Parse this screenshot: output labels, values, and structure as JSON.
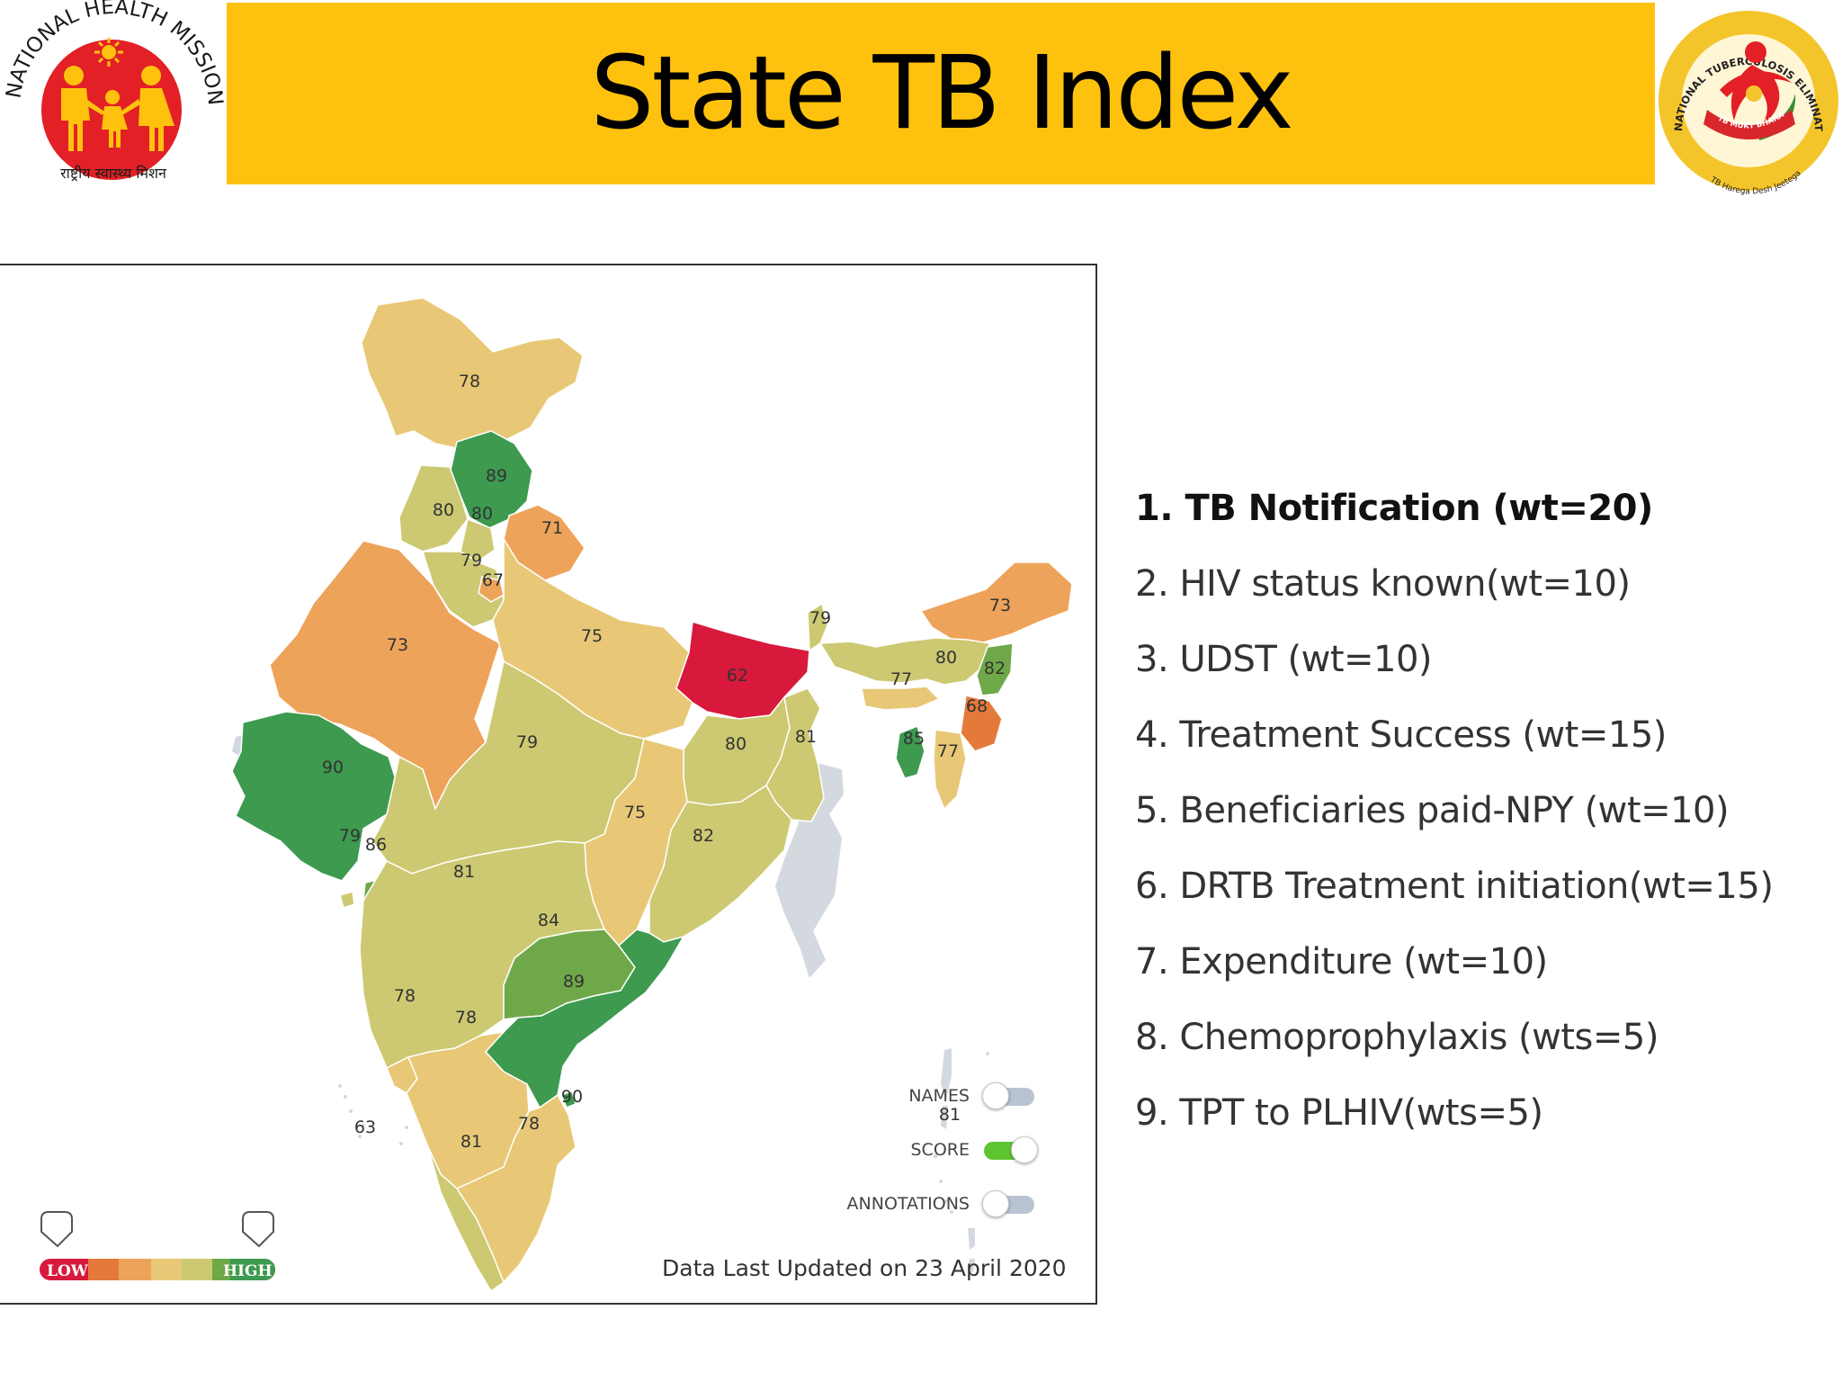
{
  "header": {
    "title": "State TB Index",
    "left_logo": {
      "icon": "national-health-mission-logo",
      "arc_text": "NATIONAL HEALTH MISSION",
      "bottom_text": "राष्ट्रीय स्वास्थ्य मिशन",
      "colors": {
        "circle": "#e22026",
        "figures": "#fec20e"
      }
    },
    "right_logo": {
      "icon": "ntep-tb-mukt-bharat-logo",
      "arc_text": "NATIONAL TUBERCULOSIS ELIMINATION PROGRAMME",
      "banner_text": "TB MUKT BHARAT",
      "bottom_text": "TB Harega Desh Jeetega"
    },
    "colors": {
      "title_bar": "#fec20e"
    }
  },
  "map": {
    "score_labels": {
      "jk": "78",
      "hp": "89",
      "pb": "80",
      "ch": "80",
      "uk": "71",
      "hr": "79",
      "dl": "67",
      "rj": "73",
      "up": "75",
      "br": "62",
      "sk": "79",
      "ar": "73",
      "as": "80",
      "nl": "82",
      "ml": "77",
      "mn": "68",
      "tr": "85",
      "mz": "77",
      "gj": "90",
      "mp": "79",
      "jh": "80",
      "wb": "81",
      "ct": "75",
      "or": "82",
      "dd": "79",
      "dn": "86",
      "mh": "81",
      "tg": "84",
      "ap": "89",
      "ga": "78",
      "ka": "78",
      "ld": "63",
      "kl": "81",
      "tn": "78",
      "py": "90",
      "an": "81"
    },
    "colors": {
      "score_62": "#d8193c",
      "score_68": "#e47a3a",
      "score_71_73": "#eda35a",
      "score_75_78": "#e8c876",
      "score_79_82": "#ccc972",
      "score_84_86": "#6fa849",
      "score_89_90": "#3d9a4f",
      "neighbour": "#d4d8df"
    },
    "toggles": [
      {
        "label": "NAMES",
        "on": false
      },
      {
        "label": "SCORE",
        "on": true
      },
      {
        "label": "ANNOTATIONS",
        "on": false
      }
    ],
    "legend": {
      "low": "LOW",
      "high": "HIGH"
    },
    "updated": "Data Last Updated on 23 April 2020"
  },
  "indicators": [
    "1. TB Notification (wt=20)",
    "2. HIV status known(wt=10)",
    "3. UDST (wt=10)",
    "4. Treatment Success (wt=15)",
    "5. Beneficiaries paid-NPY (wt=10)",
    "6. DRTB Treatment initiation(wt=15)",
    "7. Expenditure (wt=10)",
    "8. Chemoprophylaxis (wts=5)",
    "9. TPT to PLHIV(wts=5)"
  ]
}
